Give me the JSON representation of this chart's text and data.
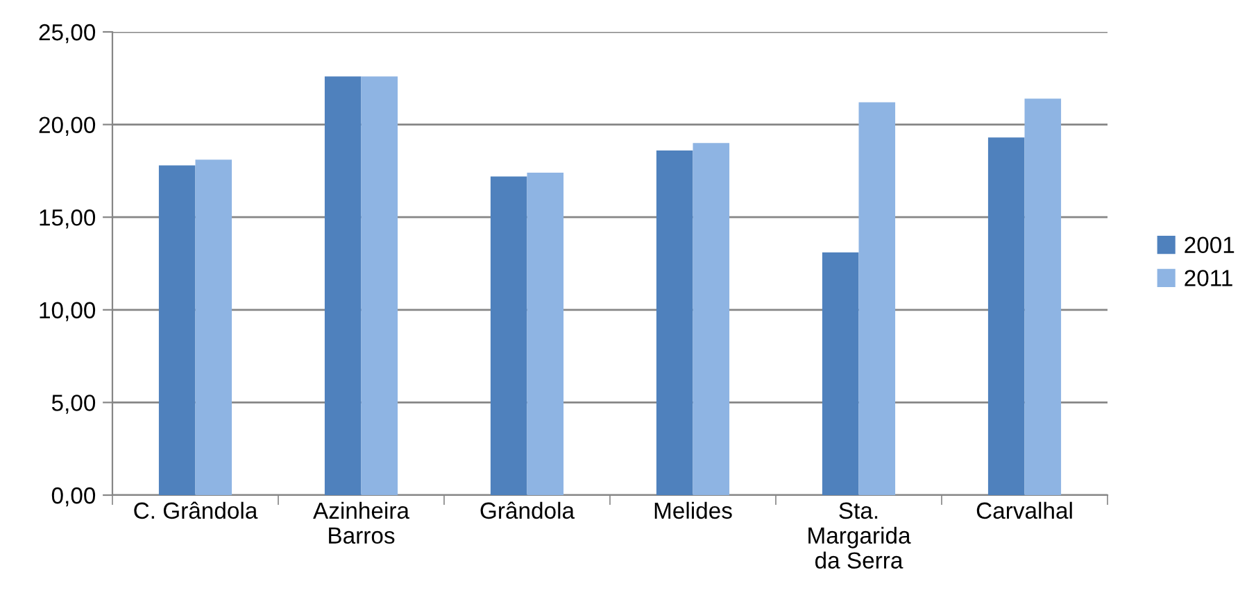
{
  "chart_data": {
    "type": "bar",
    "categories": [
      "C. Grândola",
      "Azinheira Barros",
      "Grândola",
      "Melides",
      "Sta. Margarida da Serra",
      "Carvalhal"
    ],
    "series": [
      {
        "name": "2001",
        "color": "#4f81bd",
        "values": [
          17.8,
          22.6,
          17.2,
          18.6,
          13.1,
          19.3
        ]
      },
      {
        "name": "2011",
        "color": "#8eb4e3",
        "values": [
          18.1,
          22.6,
          17.4,
          19.0,
          21.2,
          21.4
        ]
      }
    ],
    "ylim": [
      0,
      25
    ],
    "yticks": [
      {
        "value": 0,
        "label": "0,00"
      },
      {
        "value": 5,
        "label": "5,00"
      },
      {
        "value": 10,
        "label": "10,00"
      },
      {
        "value": 15,
        "label": "15,00"
      },
      {
        "value": 20,
        "label": "20,00"
      },
      {
        "value": 25,
        "label": "25,00"
      }
    ],
    "grid": "y",
    "legend": "right"
  }
}
